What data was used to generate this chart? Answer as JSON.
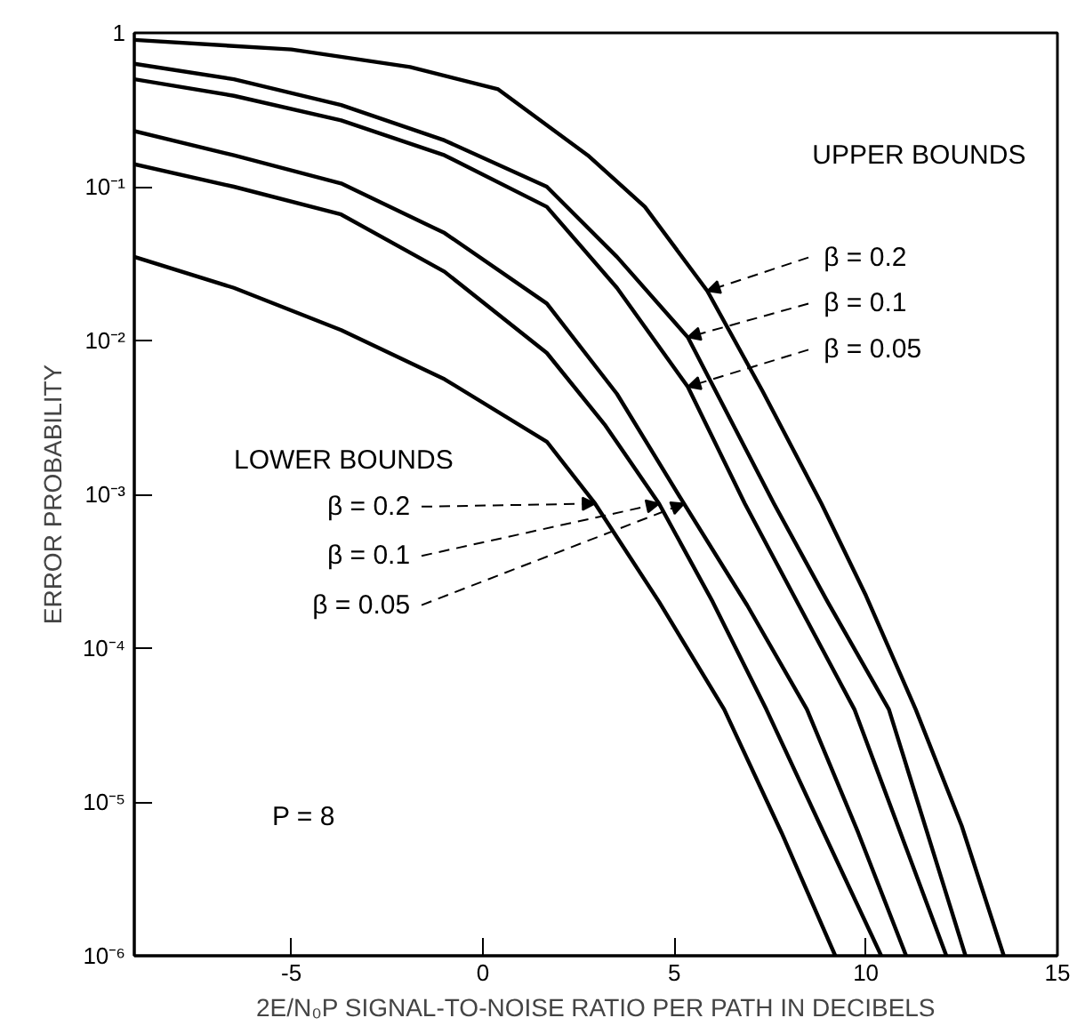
{
  "chart_data": {
    "type": "line",
    "xlabel": "2E/N₀P SIGNAL-TO-NOISE RATIO PER PATH IN DECIBELS",
    "ylabel": "ERROR PROBABILITY",
    "log": "y",
    "grid": false,
    "marker": "none",
    "line_style": "solid",
    "xlim": [
      -9.1,
      15
    ],
    "xticks": [
      -5,
      0,
      5,
      10,
      15
    ],
    "ylim": [
      1e-06,
      1
    ],
    "yticks": [
      1,
      {
        "value": 0.1,
        "label": "10⁻¹"
      },
      {
        "value": 0.01,
        "label": "10⁻²"
      },
      {
        "value": 0.001,
        "label": "10⁻³"
      },
      {
        "value": 0.0001,
        "label": "10⁻⁴"
      },
      {
        "value": 1e-05,
        "label": "10⁻⁵"
      },
      {
        "value": 1e-06,
        "label": "10⁻⁶"
      }
    ],
    "annotations": [
      "UPPER BOUNDS",
      {
        "text": "β = 0.2",
        "x": 5.86,
        "y": 0.021
      },
      {
        "text": "β = 0.1",
        "x": 5.35,
        "y": 0.0105
      },
      {
        "text": "β = 0.05",
        "x": 5.35,
        "y": 0.005
      },
      "LOWER BOUNDS",
      {
        "text": "β = 0.2",
        "x": 2.93,
        "y": 0.00087
      },
      {
        "text": "β = 0.1",
        "x": 4.6,
        "y": 0.00087
      },
      {
        "text": "β = 0.05",
        "x": 5.25,
        "y": 0.00087
      },
      "P = 8"
    ],
    "series": [
      {
        "color": "#000000",
        "x": [
          -9.1,
          -5,
          -1.9,
          0.4,
          2.74,
          4.23,
          5.86,
          7.3,
          8.84,
          10,
          11.3,
          12.5,
          13.6
        ],
        "values": [
          0.9,
          0.78,
          0.6,
          0.43,
          0.16,
          0.074,
          0.021,
          0.0047,
          0.00087,
          0.00022,
          4e-05,
          7e-06,
          1e-06
        ]
      },
      {
        "color": "#000000",
        "x": [
          -9.1,
          -6.5,
          -3.7,
          -1,
          1.67,
          3.5,
          5.35,
          7.6,
          9,
          10.6,
          12.6
        ],
        "values": [
          0.63,
          0.5,
          0.34,
          0.2,
          0.1,
          0.035,
          0.0105,
          0.00087,
          0.0002,
          4e-05,
          1e-06
        ]
      },
      {
        "color": "#000000",
        "x": [
          -9.1,
          -6.5,
          -3.7,
          -1,
          1.67,
          3.5,
          5.35,
          6.84,
          8.3,
          9.7,
          12.1
        ],
        "values": [
          0.5,
          0.39,
          0.27,
          0.16,
          0.074,
          0.022,
          0.005,
          0.00087,
          0.00018,
          4e-05,
          1e-06
        ]
      },
      {
        "color": "#000000",
        "x": [
          -9.1,
          -6.5,
          -3.7,
          -1,
          1.67,
          2.93,
          4.6,
          6.3,
          7.8,
          9.2
        ],
        "values": [
          0.035,
          0.022,
          0.0117,
          0.0056,
          0.0022,
          0.00087,
          0.0002,
          4e-05,
          6.3e-06,
          1e-06
        ]
      },
      {
        "color": "#000000",
        "x": [
          -9.1,
          -6.5,
          -3.7,
          -1,
          1.67,
          3.2,
          4.6,
          6,
          7.4,
          8.9,
          10.4
        ],
        "values": [
          0.14,
          0.1,
          0.066,
          0.028,
          0.0083,
          0.0028,
          0.00087,
          0.0002,
          4e-05,
          6.3e-06,
          1e-06
        ]
      },
      {
        "color": "#000000",
        "x": [
          -9.1,
          -6.5,
          -3.7,
          -1,
          1.67,
          3.5,
          5.25,
          6.9,
          8.46,
          9.8,
          11.05
        ],
        "values": [
          0.23,
          0.16,
          0.105,
          0.05,
          0.0174,
          0.0045,
          0.00087,
          0.00019,
          4e-05,
          6.3e-06,
          1e-06
        ]
      }
    ]
  }
}
